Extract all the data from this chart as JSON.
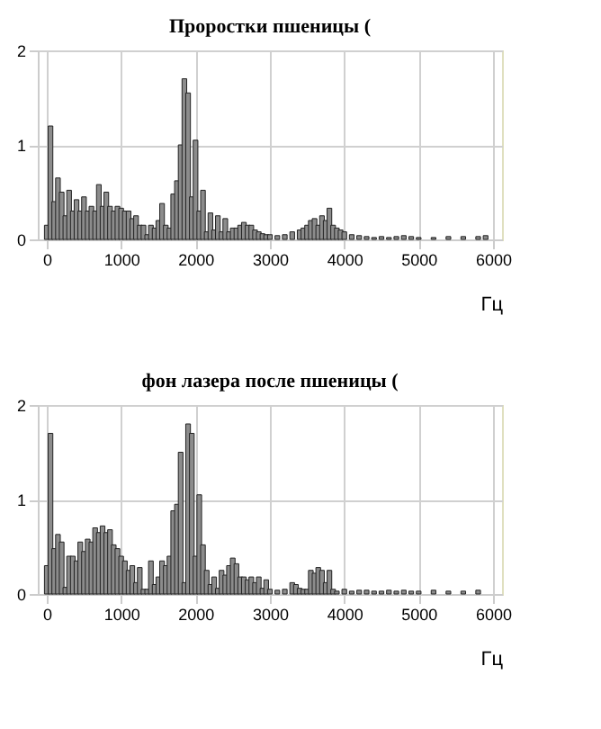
{
  "chart_data": [
    {
      "type": "bar",
      "title": "Проростки пшеницы (",
      "xlabel": "Гц",
      "xlim": [
        0,
        6000
      ],
      "xticks": [
        0,
        1000,
        2000,
        3000,
        4000,
        5000,
        6000
      ],
      "ylim": [
        0,
        2
      ],
      "yticks": [
        0,
        1,
        2
      ],
      "grid": true,
      "color": "#8c8c8c",
      "x": [
        0,
        50,
        100,
        150,
        200,
        250,
        300,
        350,
        400,
        450,
        500,
        550,
        600,
        650,
        700,
        750,
        800,
        850,
        900,
        950,
        1000,
        1050,
        1100,
        1150,
        1200,
        1250,
        1300,
        1350,
        1400,
        1450,
        1500,
        1550,
        1600,
        1650,
        1700,
        1750,
        1800,
        1850,
        1900,
        1950,
        2000,
        2050,
        2100,
        2150,
        2200,
        2250,
        2300,
        2350,
        2400,
        2450,
        2500,
        2550,
        2600,
        2650,
        2700,
        2750,
        2800,
        2850,
        2900,
        2950,
        3000,
        3100,
        3200,
        3300,
        3400,
        3450,
        3500,
        3550,
        3600,
        3650,
        3700,
        3750,
        3800,
        3850,
        3900,
        3950,
        4000,
        4100,
        4200,
        4300,
        4400,
        4500,
        4600,
        4700,
        4800,
        4900,
        5000,
        5200,
        5400,
        5600,
        5800,
        5900
      ],
      "values": [
        0.15,
        1.2,
        0.4,
        0.65,
        0.5,
        0.25,
        0.52,
        0.3,
        0.42,
        0.3,
        0.45,
        0.3,
        0.35,
        0.3,
        0.58,
        0.35,
        0.5,
        0.35,
        0.3,
        0.35,
        0.33,
        0.3,
        0.3,
        0.22,
        0.25,
        0.15,
        0.15,
        0.05,
        0.15,
        0.12,
        0.2,
        0.38,
        0.15,
        0.12,
        0.48,
        0.62,
        1.0,
        1.7,
        1.55,
        0.45,
        1.05,
        0.3,
        0.52,
        0.08,
        0.28,
        0.1,
        0.25,
        0.08,
        0.22,
        0.08,
        0.12,
        0.12,
        0.15,
        0.18,
        0.15,
        0.15,
        0.1,
        0.08,
        0.06,
        0.05,
        0.05,
        0.04,
        0.05,
        0.08,
        0.1,
        0.12,
        0.15,
        0.2,
        0.22,
        0.15,
        0.25,
        0.2,
        0.33,
        0.15,
        0.12,
        0.1,
        0.08,
        0.05,
        0.04,
        0.03,
        0.02,
        0.03,
        0.02,
        0.03,
        0.04,
        0.03,
        0.02,
        0.02,
        0.03,
        0.03,
        0.03,
        0.04
      ]
    },
    {
      "type": "bar",
      "title": "фон лазера после пшеницы (",
      "xlabel": "Гц",
      "xlim": [
        0,
        6000
      ],
      "xticks": [
        0,
        1000,
        2000,
        3000,
        4000,
        5000,
        6000
      ],
      "ylim": [
        0,
        2
      ],
      "yticks": [
        0,
        1,
        2
      ],
      "grid": true,
      "color": "#8c8c8c",
      "x": [
        0,
        50,
        100,
        150,
        200,
        250,
        300,
        350,
        400,
        450,
        500,
        550,
        600,
        650,
        700,
        750,
        800,
        850,
        900,
        950,
        1000,
        1050,
        1100,
        1150,
        1200,
        1250,
        1300,
        1350,
        1400,
        1450,
        1500,
        1550,
        1600,
        1650,
        1700,
        1750,
        1800,
        1850,
        1900,
        1950,
        2000,
        2050,
        2100,
        2150,
        2200,
        2250,
        2300,
        2350,
        2400,
        2450,
        2500,
        2550,
        2600,
        2650,
        2700,
        2750,
        2800,
        2850,
        2900,
        2950,
        3000,
        3100,
        3200,
        3300,
        3350,
        3400,
        3450,
        3500,
        3550,
        3600,
        3650,
        3700,
        3750,
        3800,
        3850,
        3900,
        4000,
        4100,
        4200,
        4300,
        4400,
        4500,
        4600,
        4700,
        4800,
        4900,
        5000,
        5200,
        5400,
        5600,
        5800
      ],
      "values": [
        0.3,
        1.7,
        0.48,
        0.63,
        0.55,
        0.07,
        0.4,
        0.4,
        0.35,
        0.55,
        0.45,
        0.58,
        0.55,
        0.7,
        0.65,
        0.72,
        0.65,
        0.68,
        0.52,
        0.48,
        0.4,
        0.35,
        0.25,
        0.3,
        0.12,
        0.28,
        0.05,
        0.05,
        0.35,
        0.1,
        0.18,
        0.35,
        0.3,
        0.4,
        0.88,
        0.95,
        1.5,
        0.12,
        1.8,
        1.7,
        0.4,
        1.05,
        0.52,
        0.25,
        0.1,
        0.18,
        0.06,
        0.25,
        0.2,
        0.3,
        0.38,
        0.32,
        0.18,
        0.18,
        0.15,
        0.18,
        0.12,
        0.18,
        0.06,
        0.15,
        0.05,
        0.04,
        0.05,
        0.12,
        0.1,
        0.06,
        0.05,
        0.05,
        0.25,
        0.22,
        0.28,
        0.25,
        0.12,
        0.25,
        0.05,
        0.03,
        0.05,
        0.03,
        0.04,
        0.04,
        0.03,
        0.03,
        0.04,
        0.03,
        0.04,
        0.03,
        0.03,
        0.04,
        0.03,
        0.03,
        0.04
      ]
    }
  ]
}
